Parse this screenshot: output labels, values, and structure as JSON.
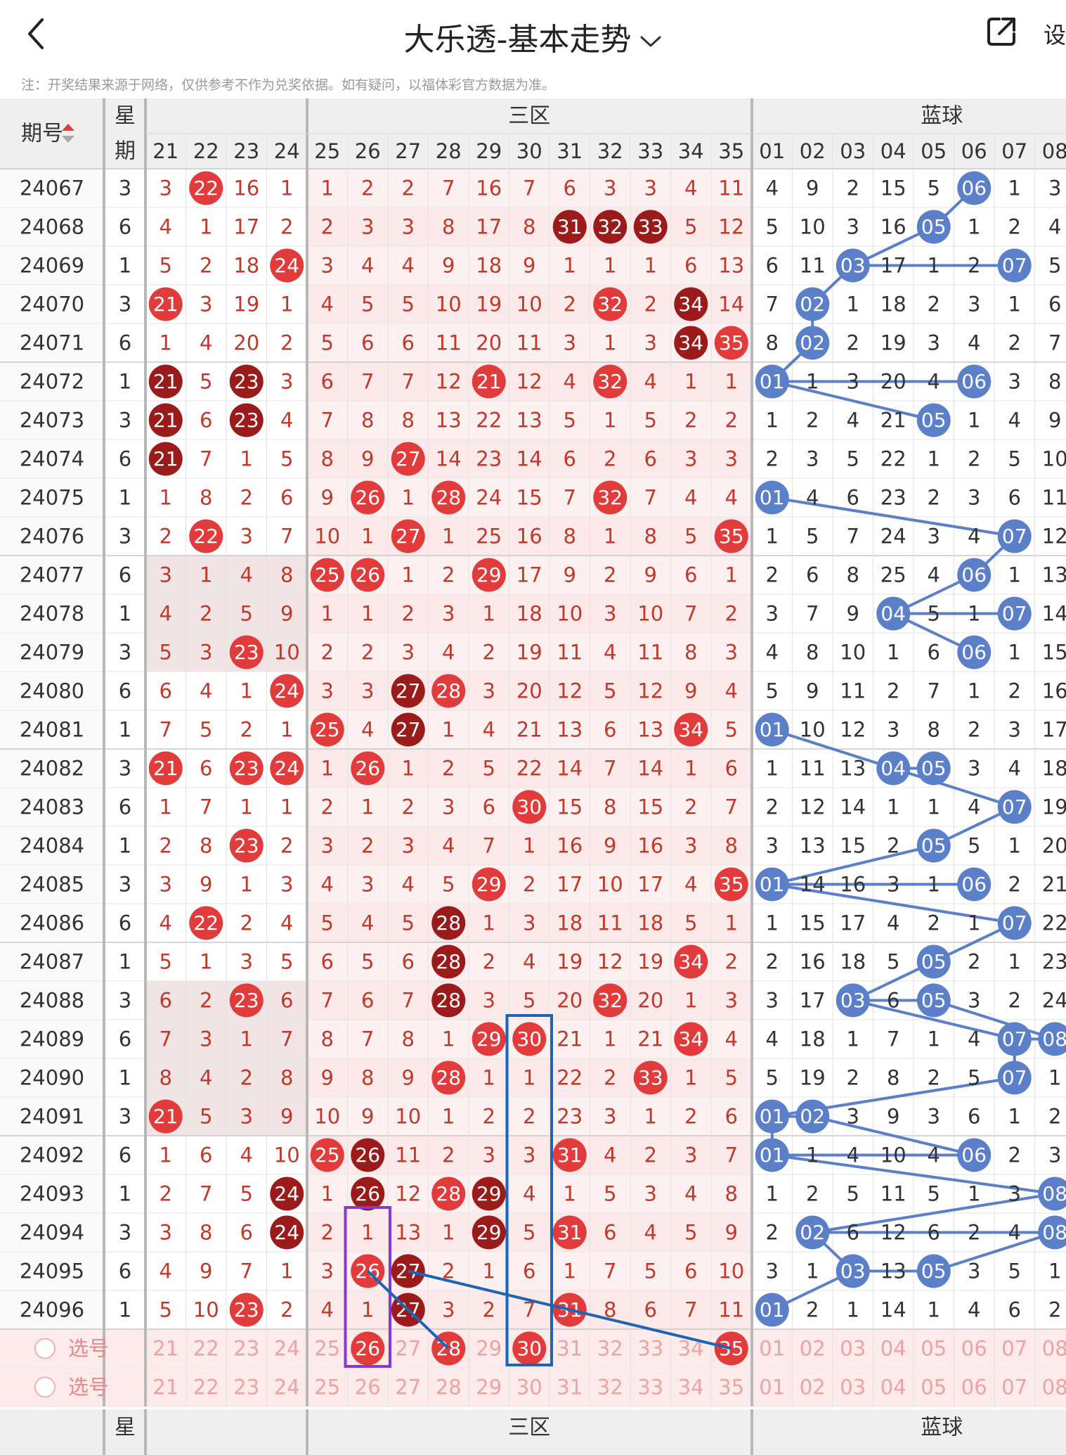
{
  "header": {
    "title": "大乐透-基本走势",
    "settings_label": "设",
    "note": "注：开奖结果来源于网络，仅供参考不作为兑奖依据。如有疑问，以福体彩官方数据为准。"
  },
  "table": {
    "period_header": "期号",
    "week_header": [
      "星",
      "期"
    ],
    "zone3_label": "三区",
    "blue_label": "蓝球",
    "red_cols": [
      "21",
      "22",
      "23",
      "24",
      "25",
      "26",
      "27",
      "28",
      "29",
      "30",
      "31",
      "32",
      "33",
      "34",
      "35"
    ],
    "blue_cols": [
      "01",
      "02",
      "03",
      "04",
      "05",
      "06",
      "07",
      "08"
    ],
    "rows": [
      {
        "period": "24067",
        "week": "3",
        "red": [
          "3",
          "22",
          "16",
          "1",
          "1",
          "2",
          "2",
          "7",
          "16",
          "7",
          "6",
          "3",
          "3",
          "4",
          "11"
        ],
        "hits": [
          "22"
        ],
        "blue": [
          "4",
          "9",
          "2",
          "15",
          "5",
          "06",
          "1",
          "3"
        ],
        "blueHits": [
          "06"
        ]
      },
      {
        "period": "24068",
        "week": "6",
        "red": [
          "4",
          "1",
          "17",
          "2",
          "2",
          "3",
          "3",
          "8",
          "17",
          "8",
          "31",
          "32",
          "33",
          "5",
          "12"
        ],
        "hits": [
          "31",
          "32",
          "33"
        ],
        "blue": [
          "5",
          "10",
          "3",
          "16",
          "05",
          "1",
          "2",
          "4"
        ],
        "blueHits": [
          "05"
        ]
      },
      {
        "period": "24069",
        "week": "1",
        "red": [
          "5",
          "2",
          "18",
          "24",
          "3",
          "4",
          "4",
          "9",
          "18",
          "9",
          "1",
          "1",
          "1",
          "6",
          "13"
        ],
        "hits": [
          "24"
        ],
        "blue": [
          "6",
          "11",
          "03",
          "17",
          "1",
          "2",
          "07",
          "5"
        ],
        "blueHits": [
          "03",
          "07"
        ]
      },
      {
        "period": "24070",
        "week": "3",
        "red": [
          "21",
          "3",
          "19",
          "1",
          "4",
          "5",
          "5",
          "10",
          "19",
          "10",
          "2",
          "32",
          "2",
          "34",
          "14"
        ],
        "hits": [
          "21",
          "32",
          "34"
        ],
        "blue": [
          "7",
          "02",
          "1",
          "18",
          "2",
          "3",
          "1",
          "6"
        ],
        "blueHits": [
          "02"
        ]
      },
      {
        "period": "24071",
        "week": "6",
        "red": [
          "1",
          "4",
          "20",
          "2",
          "5",
          "6",
          "6",
          "11",
          "20",
          "11",
          "3",
          "1",
          "3",
          "34",
          "35"
        ],
        "hits": [
          "34",
          "35"
        ],
        "blue": [
          "8",
          "02",
          "2",
          "19",
          "3",
          "4",
          "2",
          "7"
        ],
        "blueHits": [
          "02"
        ]
      },
      {
        "period": "24072",
        "week": "1",
        "red": [
          "21",
          "5",
          "23",
          "3",
          "6",
          "7",
          "7",
          "12",
          "21",
          "12",
          "4",
          "32",
          "4",
          "1",
          "1"
        ],
        "hits": [
          "21",
          "23",
          "32"
        ],
        "blue": [
          "01",
          "1",
          "3",
          "20",
          "4",
          "06",
          "3",
          "8"
        ],
        "blueHits": [
          "01",
          "06"
        ]
      },
      {
        "period": "24073",
        "week": "3",
        "red": [
          "21",
          "6",
          "23",
          "4",
          "7",
          "8",
          "8",
          "13",
          "22",
          "13",
          "5",
          "1",
          "5",
          "2",
          "2"
        ],
        "hits": [
          "21",
          "23"
        ],
        "blue": [
          "1",
          "2",
          "4",
          "21",
          "05",
          "1",
          "4",
          "9"
        ],
        "blueHits": [
          "05"
        ]
      },
      {
        "period": "24074",
        "week": "6",
        "red": [
          "21",
          "7",
          "1",
          "5",
          "8",
          "9",
          "27",
          "14",
          "23",
          "14",
          "6",
          "2",
          "6",
          "3",
          "3"
        ],
        "hits": [
          "21",
          "27"
        ],
        "blue": [
          "2",
          "3",
          "5",
          "22",
          "1",
          "2",
          "5",
          "10"
        ],
        "blueHits": []
      },
      {
        "period": "24075",
        "week": "1",
        "red": [
          "1",
          "8",
          "2",
          "6",
          "9",
          "26",
          "1",
          "28",
          "24",
          "15",
          "7",
          "32",
          "7",
          "4",
          "4"
        ],
        "hits": [
          "26",
          "28",
          "32"
        ],
        "blue": [
          "01",
          "4",
          "6",
          "23",
          "2",
          "3",
          "6",
          "11"
        ],
        "blueHits": [
          "01"
        ]
      },
      {
        "period": "24076",
        "week": "3",
        "red": [
          "2",
          "22",
          "3",
          "7",
          "10",
          "1",
          "27",
          "1",
          "25",
          "16",
          "8",
          "1",
          "8",
          "5",
          "35"
        ],
        "hits": [
          "22",
          "27",
          "35"
        ],
        "blue": [
          "1",
          "5",
          "7",
          "24",
          "3",
          "4",
          "07",
          "12"
        ],
        "blueHits": [
          "07"
        ]
      },
      {
        "period": "24077",
        "week": "6",
        "red": [
          "3",
          "1",
          "4",
          "8",
          "25",
          "26",
          "1",
          "2",
          "29",
          "17",
          "9",
          "2",
          "9",
          "6",
          "1"
        ],
        "hits": [
          "25",
          "26",
          "29"
        ],
        "blue": [
          "2",
          "6",
          "8",
          "25",
          "4",
          "06",
          "1",
          "13"
        ],
        "blueHits": [
          "06"
        ]
      },
      {
        "period": "24078",
        "week": "1",
        "red": [
          "4",
          "2",
          "5",
          "9",
          "1",
          "1",
          "2",
          "3",
          "1",
          "18",
          "10",
          "3",
          "10",
          "7",
          "2"
        ],
        "hits": [],
        "blue": [
          "3",
          "7",
          "9",
          "04",
          "5",
          "1",
          "07",
          "14"
        ],
        "blueHits": [
          "04",
          "07"
        ]
      },
      {
        "period": "24079",
        "week": "3",
        "red": [
          "5",
          "3",
          "23",
          "10",
          "2",
          "2",
          "3",
          "4",
          "2",
          "19",
          "11",
          "4",
          "11",
          "8",
          "3"
        ],
        "hits": [
          "23"
        ],
        "blue": [
          "4",
          "8",
          "10",
          "1",
          "6",
          "06",
          "1",
          "15"
        ],
        "blueHits": [
          "06"
        ]
      },
      {
        "period": "24080",
        "week": "6",
        "red": [
          "6",
          "4",
          "1",
          "24",
          "3",
          "3",
          "27",
          "28",
          "3",
          "20",
          "12",
          "5",
          "12",
          "9",
          "4"
        ],
        "hits": [
          "24",
          "27",
          "28"
        ],
        "blue": [
          "5",
          "9",
          "11",
          "2",
          "7",
          "1",
          "2",
          "16"
        ],
        "blueHits": []
      },
      {
        "period": "24081",
        "week": "1",
        "red": [
          "7",
          "5",
          "2",
          "1",
          "25",
          "4",
          "27",
          "1",
          "4",
          "21",
          "13",
          "6",
          "13",
          "34",
          "5"
        ],
        "hits": [
          "25",
          "27",
          "34"
        ],
        "blue": [
          "01",
          "10",
          "12",
          "3",
          "8",
          "2",
          "3",
          "17"
        ],
        "blueHits": [
          "01"
        ]
      },
      {
        "period": "24082",
        "week": "3",
        "red": [
          "21",
          "6",
          "23",
          "24",
          "1",
          "26",
          "1",
          "2",
          "5",
          "22",
          "14",
          "7",
          "14",
          "1",
          "6"
        ],
        "hits": [
          "21",
          "23",
          "24",
          "26"
        ],
        "blue": [
          "1",
          "11",
          "13",
          "04",
          "05",
          "3",
          "4",
          "18"
        ],
        "blueHits": [
          "04",
          "05"
        ]
      },
      {
        "period": "24083",
        "week": "6",
        "red": [
          "1",
          "7",
          "1",
          "1",
          "2",
          "1",
          "2",
          "3",
          "6",
          "30",
          "15",
          "8",
          "15",
          "2",
          "7"
        ],
        "hits": [
          "30"
        ],
        "blue": [
          "2",
          "12",
          "14",
          "1",
          "1",
          "4",
          "07",
          "19"
        ],
        "blueHits": [
          "07"
        ]
      },
      {
        "period": "24084",
        "week": "1",
        "red": [
          "2",
          "8",
          "23",
          "2",
          "3",
          "2",
          "3",
          "4",
          "7",
          "1",
          "16",
          "9",
          "16",
          "3",
          "8"
        ],
        "hits": [
          "23"
        ],
        "blue": [
          "3",
          "13",
          "15",
          "2",
          "05",
          "5",
          "1",
          "20"
        ],
        "blueHits": [
          "05"
        ]
      },
      {
        "period": "24085",
        "week": "3",
        "red": [
          "3",
          "9",
          "1",
          "3",
          "4",
          "3",
          "4",
          "5",
          "29",
          "2",
          "17",
          "10",
          "17",
          "4",
          "35"
        ],
        "hits": [
          "29",
          "35"
        ],
        "blue": [
          "01",
          "14",
          "16",
          "3",
          "1",
          "06",
          "2",
          "21"
        ],
        "blueHits": [
          "01",
          "06"
        ]
      },
      {
        "period": "24086",
        "week": "6",
        "red": [
          "4",
          "22",
          "2",
          "4",
          "5",
          "4",
          "5",
          "28",
          "1",
          "3",
          "18",
          "11",
          "18",
          "5",
          "1"
        ],
        "hits": [
          "22",
          "28"
        ],
        "blue": [
          "1",
          "15",
          "17",
          "4",
          "2",
          "1",
          "07",
          "22"
        ],
        "blueHits": [
          "07"
        ]
      },
      {
        "period": "24087",
        "week": "1",
        "red": [
          "5",
          "1",
          "3",
          "5",
          "6",
          "5",
          "6",
          "28",
          "2",
          "4",
          "19",
          "12",
          "19",
          "34",
          "2"
        ],
        "hits": [
          "28",
          "34"
        ],
        "blue": [
          "2",
          "16",
          "18",
          "5",
          "05",
          "2",
          "1",
          "23"
        ],
        "blueHits": [
          "05"
        ]
      },
      {
        "period": "24088",
        "week": "3",
        "red": [
          "6",
          "2",
          "23",
          "6",
          "7",
          "6",
          "7",
          "28",
          "3",
          "5",
          "20",
          "32",
          "20",
          "1",
          "3"
        ],
        "hits": [
          "23",
          "28",
          "32"
        ],
        "blue": [
          "3",
          "17",
          "03",
          "6",
          "05",
          "3",
          "2",
          "24"
        ],
        "blueHits": [
          "03",
          "05"
        ]
      },
      {
        "period": "24089",
        "week": "6",
        "red": [
          "7",
          "3",
          "1",
          "7",
          "8",
          "7",
          "8",
          "1",
          "29",
          "30",
          "21",
          "1",
          "21",
          "34",
          "4"
        ],
        "hits": [
          "29",
          "30",
          "34"
        ],
        "blue": [
          "4",
          "18",
          "1",
          "7",
          "1",
          "4",
          "07",
          "08"
        ],
        "blueHits": [
          "07",
          "08"
        ]
      },
      {
        "period": "24090",
        "week": "1",
        "red": [
          "8",
          "4",
          "2",
          "8",
          "9",
          "8",
          "9",
          "28",
          "1",
          "1",
          "22",
          "2",
          "33",
          "1",
          "5"
        ],
        "hits": [
          "28",
          "33"
        ],
        "blue": [
          "5",
          "19",
          "2",
          "8",
          "2",
          "5",
          "07",
          "1"
        ],
        "blueHits": [
          "07"
        ]
      },
      {
        "period": "24091",
        "week": "3",
        "red": [
          "21",
          "5",
          "3",
          "9",
          "10",
          "9",
          "10",
          "1",
          "2",
          "2",
          "23",
          "3",
          "1",
          "2",
          "6"
        ],
        "hits": [
          "21"
        ],
        "blue": [
          "01",
          "02",
          "3",
          "9",
          "3",
          "6",
          "1",
          "2"
        ],
        "blueHits": [
          "01",
          "02"
        ]
      },
      {
        "period": "24092",
        "week": "6",
        "red": [
          "1",
          "6",
          "4",
          "10",
          "25",
          "26",
          "11",
          "2",
          "3",
          "3",
          "31",
          "4",
          "2",
          "3",
          "7"
        ],
        "hits": [
          "25",
          "26",
          "31"
        ],
        "blue": [
          "01",
          "1",
          "4",
          "10",
          "4",
          "06",
          "2",
          "3"
        ],
        "blueHits": [
          "01",
          "06"
        ]
      },
      {
        "period": "24093",
        "week": "1",
        "red": [
          "2",
          "7",
          "5",
          "24",
          "1",
          "26",
          "12",
          "28",
          "29",
          "4",
          "1",
          "5",
          "3",
          "4",
          "8"
        ],
        "hits": [
          "24",
          "26",
          "28",
          "29"
        ],
        "blue": [
          "1",
          "2",
          "5",
          "11",
          "5",
          "1",
          "3",
          "08"
        ],
        "blueHits": [
          "08"
        ]
      },
      {
        "period": "24094",
        "week": "3",
        "red": [
          "3",
          "8",
          "6",
          "24",
          "2",
          "1",
          "13",
          "1",
          "29",
          "5",
          "31",
          "6",
          "4",
          "5",
          "9"
        ],
        "hits": [
          "24",
          "29",
          "31"
        ],
        "blue": [
          "2",
          "02",
          "6",
          "12",
          "6",
          "2",
          "4",
          "08"
        ],
        "blueHits": [
          "02",
          "08"
        ]
      },
      {
        "period": "24095",
        "week": "6",
        "red": [
          "4",
          "9",
          "7",
          "1",
          "3",
          "26",
          "27",
          "2",
          "1",
          "6",
          "1",
          "7",
          "5",
          "6",
          "10"
        ],
        "hits": [
          "26",
          "27"
        ],
        "blue": [
          "3",
          "1",
          "03",
          "13",
          "05",
          "3",
          "5",
          "1"
        ],
        "blueHits": [
          "03",
          "05"
        ]
      },
      {
        "period": "24096",
        "week": "1",
        "red": [
          "5",
          "10",
          "23",
          "2",
          "4",
          "1",
          "27",
          "3",
          "2",
          "7",
          "31",
          "8",
          "6",
          "7",
          "11"
        ],
        "hits": [
          "23",
          "27",
          "31"
        ],
        "blue": [
          "01",
          "2",
          "1",
          "14",
          "1",
          "4",
          "6",
          "2"
        ],
        "blueHits": [
          "01"
        ]
      }
    ],
    "select_rows": [
      {
        "label": "选号",
        "selected": [
          "26",
          "28",
          "30",
          "35"
        ]
      },
      {
        "label": "选号",
        "selected": []
      }
    ]
  },
  "colors": {
    "red": "#e23b3b",
    "dark_red": "#9b1b1b",
    "blue": "#5b7fc8",
    "pink_band": "#fdf0f0",
    "line_purple": "#8a38c8",
    "line_blue": "#1f63b5"
  }
}
